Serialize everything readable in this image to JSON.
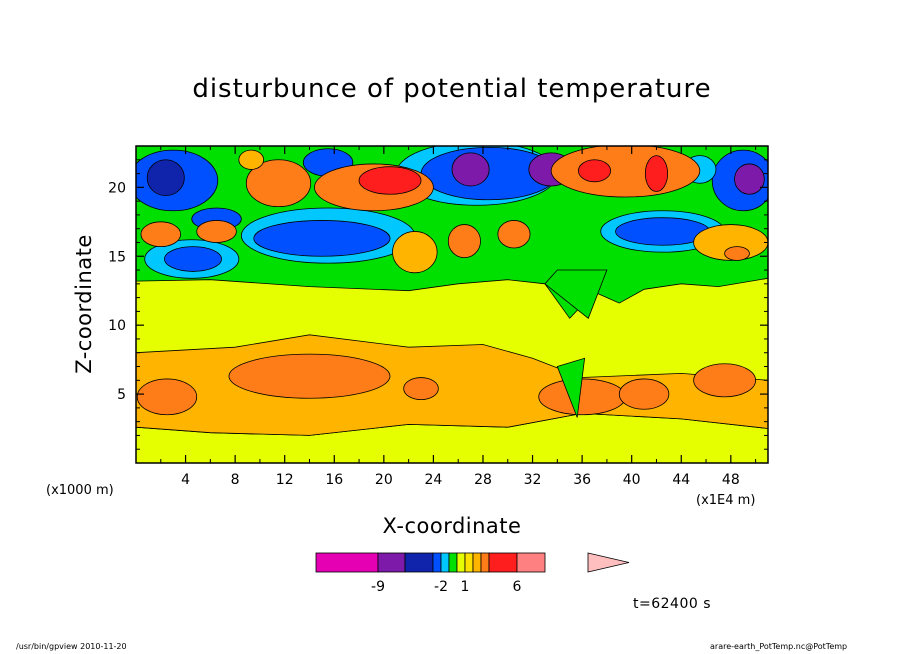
{
  "chart_data": {
    "type": "heatmap",
    "title": "disturbunce of potential temperature",
    "xlabel": "X-coordinate",
    "ylabel": "Z-coordinate",
    "x_unit_left": "(x1000 m)",
    "x_unit_right": "(x1E4 m)",
    "xlim": [
      0,
      51
    ],
    "ylim": [
      0,
      23
    ],
    "x_ticks": [
      4,
      8,
      12,
      16,
      20,
      24,
      28,
      32,
      36,
      40,
      44,
      48
    ],
    "y_ticks": [
      5,
      10,
      15,
      20
    ],
    "colorbar": {
      "labels": [
        "-9",
        "-2",
        "1",
        "6"
      ],
      "colors": [
        "#e600b4",
        "#7d1aaa",
        "#0f24aa",
        "#0050ff",
        "#00c8ff",
        "#00e000",
        "#e6ff00",
        "#ffe100",
        "#ffb400",
        "#ff7d19",
        "#ff1e1e",
        "#ff8080",
        "#ffbfbf"
      ]
    },
    "time_label": "t=62400 s"
  },
  "footer": {
    "left": "/usr/bin/gpview 2010-11-20",
    "right": "arare-earth_PotTemp.nc@PotTemp"
  }
}
